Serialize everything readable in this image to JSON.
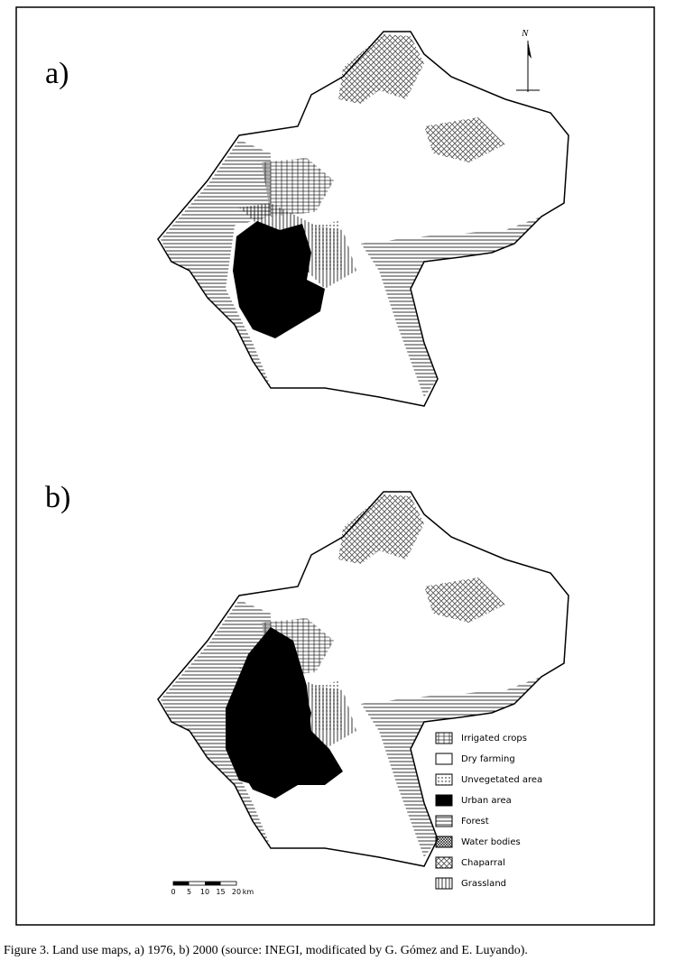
{
  "panels": [
    {
      "label": "a)"
    },
    {
      "label": "b)"
    }
  ],
  "north": "N",
  "legend": [
    "Irrigated crops",
    "Dry farming",
    "Unvegetated area",
    "Urban area",
    "Forest",
    "Water bodies",
    "Chaparral",
    "Grassland"
  ],
  "scale": {
    "labels": [
      "0",
      "5",
      "10",
      "15",
      "20"
    ],
    "unit": "km"
  },
  "caption": "Figure 3. Land use maps, a) 1976, b) 2000 (source: INEGI, modificated by G. Gómez and E. Luyando)."
}
